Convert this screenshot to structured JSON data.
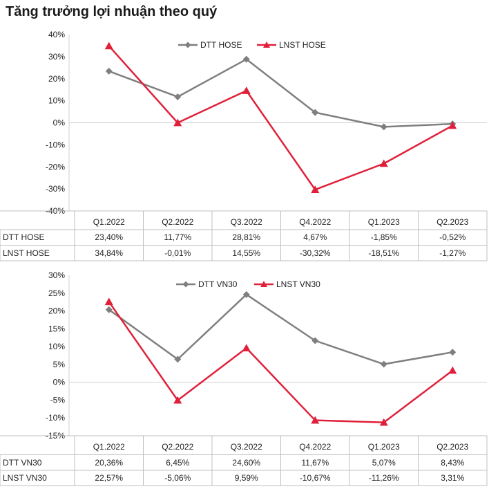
{
  "page_title": "Tăng trưởng lợi nhuận theo quý",
  "colors": {
    "dtt": "#7f7f7f",
    "lnst": "#e0203a",
    "grid": "#bfbfbf",
    "axis": "#d0d0d0"
  },
  "chart_data": [
    {
      "type": "line",
      "title": "",
      "categories": [
        "Q1.2022",
        "Q2.2022",
        "Q3.2022",
        "Q4.2022",
        "Q1.2023",
        "Q2.2023"
      ],
      "ylim": [
        -40,
        40
      ],
      "yticks": [
        "40%",
        "30%",
        "20%",
        "10%",
        "0%",
        "-10%",
        "-20%",
        "-30%",
        "-40%"
      ],
      "legend_position": "top-center",
      "series": [
        {
          "name": "DTT HOSE",
          "marker": "diamond",
          "values": [
            23.4,
            11.77,
            28.81,
            4.67,
            -1.85,
            -0.52
          ],
          "labels": [
            "23,40%",
            "11,77%",
            "28,81%",
            "4,67%",
            "-1,85%",
            "-0,52%"
          ]
        },
        {
          "name": "LNST HOSE",
          "marker": "triangle",
          "values": [
            34.84,
            -0.01,
            14.55,
            -30.32,
            -18.51,
            -1.27
          ],
          "labels": [
            "34,84%",
            "-0,01%",
            "14,55%",
            "-30,32%",
            "-18,51%",
            "-1,27%"
          ]
        }
      ]
    },
    {
      "type": "line",
      "title": "",
      "categories": [
        "Q1.2022",
        "Q2.2022",
        "Q3.2022",
        "Q4.2022",
        "Q1.2023",
        "Q2.2023"
      ],
      "ylim": [
        -15,
        30
      ],
      "yticks": [
        "30%",
        "25%",
        "20%",
        "15%",
        "10%",
        "5%",
        "0%",
        "-5%",
        "-10%",
        "-15%"
      ],
      "legend_position": "top-center",
      "series": [
        {
          "name": "DTT VN30",
          "marker": "diamond",
          "values": [
            20.36,
            6.45,
            24.6,
            11.67,
            5.07,
            8.43
          ],
          "labels": [
            "20,36%",
            "6,45%",
            "24,60%",
            "11,67%",
            "5,07%",
            "8,43%"
          ]
        },
        {
          "name": "LNST VN30",
          "marker": "triangle",
          "values": [
            22.57,
            -5.06,
            9.59,
            -10.67,
            -11.26,
            3.31
          ],
          "labels": [
            "22,57%",
            "-5,06%",
            "9,59%",
            "-10,67%",
            "-11,26%",
            "3,31%"
          ]
        }
      ]
    }
  ]
}
